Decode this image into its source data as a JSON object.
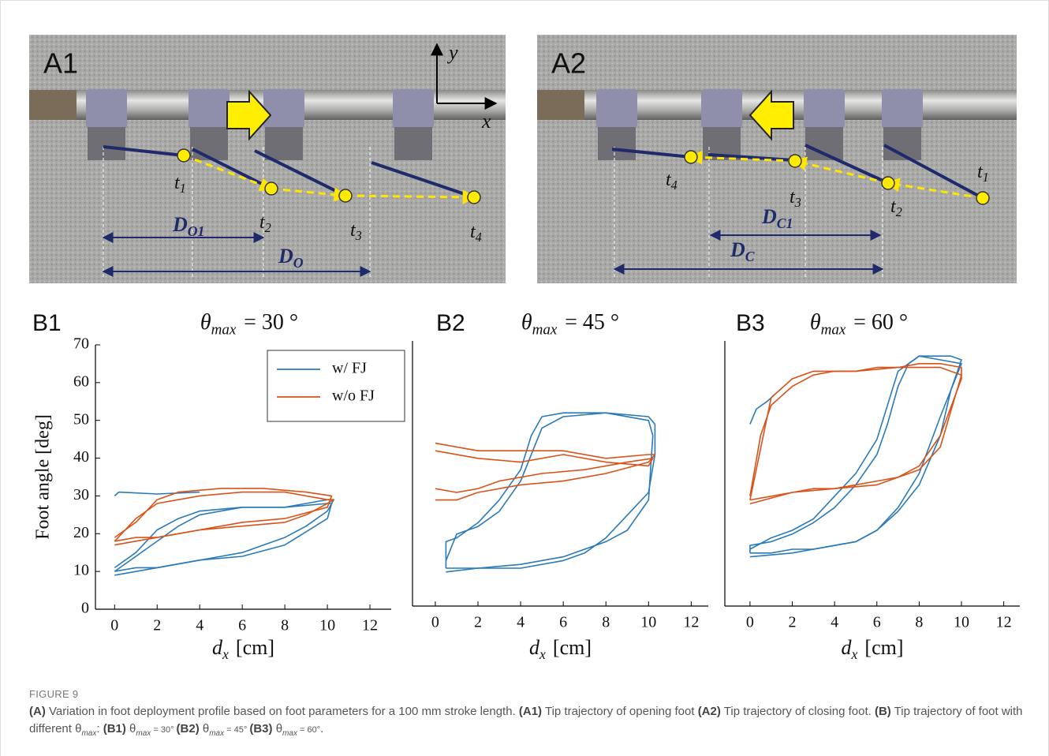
{
  "photos": [
    {
      "label": "A1",
      "axis_labels": [
        "y",
        "x"
      ],
      "tip_labels": [
        {
          "symbol": "t",
          "subscript": "1"
        },
        {
          "symbol": "t",
          "subscript": "2"
        },
        {
          "symbol": "t",
          "subscript": "3"
        },
        {
          "symbol": "t",
          "subscript": "4"
        }
      ],
      "distance_labels": [
        {
          "symbol": "D",
          "subscript": "O1"
        },
        {
          "symbol": "D",
          "subscript": "O"
        }
      ]
    },
    {
      "label": "A2",
      "tip_labels": [
        {
          "symbol": "t",
          "subscript": "1"
        },
        {
          "symbol": "t",
          "subscript": "2"
        },
        {
          "symbol": "t",
          "subscript": "3"
        },
        {
          "symbol": "t",
          "subscript": "4"
        }
      ],
      "distance_labels": [
        {
          "symbol": "D",
          "subscript": "C1"
        },
        {
          "symbol": "D",
          "subscript": "C"
        }
      ]
    }
  ],
  "chart_data": [
    {
      "type": "line",
      "panel": "B1",
      "title": {
        "symbol": "θ",
        "subscript": "max",
        "rest": "= 30 °"
      },
      "x_label": {
        "symbol": "d",
        "subscript": "x",
        "unit": "[cm]"
      },
      "y_label": "Foot angle [deg]",
      "xlim": [
        -0.9,
        13
      ],
      "xticks": [
        0,
        2,
        4,
        6,
        8,
        10,
        12
      ],
      "ylim": [
        0,
        70
      ],
      "yticks": [
        0,
        10,
        20,
        30,
        40,
        50,
        60,
        70
      ],
      "legend": "upper right",
      "series": [
        {
          "name": "w/ FJ",
          "color": "#2a7ab9",
          "x": [
            0,
            1,
            2,
            3,
            4,
            5,
            6,
            7,
            8,
            9,
            10,
            10.3,
            10,
            9,
            8,
            7,
            6,
            5,
            4,
            3,
            2,
            1,
            0
          ],
          "values": [
            10,
            11,
            11,
            12,
            13,
            14,
            15,
            17,
            19,
            22,
            26,
            29,
            29,
            28,
            27,
            27,
            27,
            26,
            25,
            22,
            18,
            14,
            10
          ]
        },
        {
          "color": "#2a7ab9",
          "x": [
            0,
            2,
            4,
            6,
            8,
            10,
            10.2,
            10,
            8,
            6,
            4,
            3,
            2,
            1,
            0
          ],
          "values": [
            9,
            11,
            13,
            14,
            17,
            24,
            28,
            28,
            27,
            27,
            26,
            24,
            21,
            15,
            11
          ]
        },
        {
          "color": "#2a7ab9",
          "x": [
            0,
            0.2,
            2,
            4
          ],
          "values": [
            30,
            31,
            30.5,
            31
          ]
        },
        {
          "name": "w/o FJ",
          "color": "#d95319",
          "x": [
            0,
            1,
            2,
            3,
            4,
            6,
            8,
            9,
            10,
            10.3,
            10,
            8,
            6,
            4,
            3,
            2,
            1,
            0
          ],
          "values": [
            18,
            19,
            19,
            20,
            21,
            22,
            23,
            25,
            28,
            29,
            29,
            31,
            31,
            30,
            29,
            28,
            24,
            18
          ]
        },
        {
          "color": "#d95319",
          "x": [
            0,
            2,
            4,
            6,
            8,
            10,
            10.2,
            9,
            7,
            5,
            3,
            2,
            1,
            0
          ],
          "values": [
            17,
            19,
            21,
            23,
            24,
            27,
            30,
            31,
            32,
            32,
            31,
            29,
            23,
            19
          ]
        }
      ]
    },
    {
      "type": "line",
      "panel": "B2",
      "title": {
        "symbol": "θ",
        "subscript": "max",
        "rest": "= 45 °"
      },
      "x_label": {
        "symbol": "d",
        "subscript": "x",
        "unit": "[cm]"
      },
      "xlim": [
        -1.07,
        12.8
      ],
      "xticks": [
        0,
        2,
        4,
        6,
        8,
        10,
        12
      ],
      "ylim": [
        0,
        70
      ],
      "series": [
        {
          "color": "#2a7ab9",
          "x": [
            0.5,
            2,
            4,
            6,
            7,
            8,
            9,
            10,
            10.3,
            10.3,
            10,
            8,
            6,
            5,
            4.5,
            4,
            3,
            2,
            1,
            0.5,
            0.5
          ],
          "values": [
            10,
            10,
            10,
            12,
            14,
            18,
            24,
            30,
            40,
            48,
            50,
            51,
            51,
            50,
            45,
            36,
            28,
            22,
            18,
            17,
            10
          ]
        },
        {
          "color": "#2a7ab9",
          "x": [
            0.5,
            2,
            4,
            6,
            8,
            9,
            10,
            10.2,
            10,
            8,
            6,
            5,
            4,
            3,
            2,
            1,
            0.5
          ],
          "values": [
            9,
            10,
            11,
            13,
            17,
            20,
            28,
            45,
            49,
            51,
            50,
            47,
            33,
            25,
            21,
            19,
            12
          ]
        },
        {
          "color": "#d95319",
          "x": [
            0,
            1,
            2,
            4,
            6,
            8,
            10,
            10.3,
            10,
            8,
            6,
            4,
            2,
            1,
            0
          ],
          "values": [
            43,
            42,
            41,
            41,
            41,
            39,
            40,
            40,
            38,
            35,
            33,
            32,
            30,
            28,
            28
          ]
        },
        {
          "color": "#d95319",
          "x": [
            0,
            2,
            4,
            6,
            8,
            10,
            10.2,
            9,
            7,
            5,
            4,
            3,
            2,
            1,
            0
          ],
          "values": [
            41,
            39,
            38,
            40,
            38,
            37,
            39,
            38,
            36,
            35,
            34,
            33,
            31,
            30,
            31
          ]
        }
      ]
    },
    {
      "type": "line",
      "panel": "B3",
      "title": {
        "symbol": "θ",
        "subscript": "max",
        "rest": "= 60 °"
      },
      "x_label": {
        "symbol": "d",
        "subscript": "x",
        "unit": "[cm]"
      },
      "xlim": [
        -1.19,
        12.76
      ],
      "xticks": [
        0,
        2,
        4,
        6,
        8,
        10,
        12
      ],
      "ylim": [
        0,
        70
      ],
      "series": [
        {
          "color": "#2a7ab9",
          "x": [
            0,
            1,
            2,
            3,
            4,
            5,
            6,
            7,
            8,
            9,
            9.5,
            10,
            9.5,
            9,
            8,
            7.5,
            7,
            6.5,
            6,
            5,
            4,
            3,
            2,
            1,
            0,
            0
          ],
          "values": [
            14,
            14,
            15,
            15,
            16,
            17,
            20,
            25,
            32,
            45,
            57,
            65,
            66,
            66,
            66,
            64,
            58,
            48,
            40,
            32,
            26,
            22,
            19,
            17,
            16,
            14
          ]
        },
        {
          "color": "#2a7ab9",
          "x": [
            0,
            2,
            4,
            5,
            6,
            7,
            8,
            9,
            10,
            9,
            8,
            7,
            6,
            5,
            4,
            3,
            2,
            1,
            0
          ],
          "values": [
            13,
            14,
            16,
            17,
            20,
            26,
            35,
            50,
            64,
            65,
            66,
            62,
            44,
            35,
            29,
            23,
            20,
            18,
            15
          ]
        },
        {
          "color": "#2a7ab9",
          "x": [
            0,
            0.3,
            0.8,
            1.2
          ],
          "values": [
            48,
            52,
            54,
            56
          ]
        },
        {
          "color": "#d95319",
          "x": [
            0,
            1,
            2,
            3,
            4,
            5,
            6,
            7,
            8,
            9,
            10,
            10,
            9,
            8,
            7,
            6,
            5,
            4,
            3,
            2,
            1,
            0.5,
            0
          ],
          "values": [
            28,
            29,
            30,
            31,
            31,
            32,
            33,
            34,
            37,
            45,
            60,
            63,
            64,
            64,
            63,
            63,
            62,
            62,
            61,
            58,
            53,
            45,
            29
          ]
        },
        {
          "color": "#d95319",
          "x": [
            0,
            2,
            4,
            6,
            8,
            9,
            10,
            9,
            7,
            5,
            3,
            2,
            1,
            0
          ],
          "values": [
            27,
            30,
            31,
            32,
            36,
            42,
            61,
            63,
            63,
            62,
            62,
            60,
            55,
            28
          ]
        }
      ]
    }
  ],
  "caption": {
    "figure_label": "FIGURE 9",
    "runs": [
      {
        "text": "(A)",
        "style": "bold"
      },
      {
        "text": " Variation in foot deployment profile based on foot parameters for a 100 mm stroke length. "
      },
      {
        "text": "(A1)",
        "style": "bold"
      },
      {
        "text": " Tip trajectory of opening foot "
      },
      {
        "text": "(A2)",
        "style": "bold"
      },
      {
        "text": " Tip trajectory of closing foot. "
      },
      {
        "text": "(B)",
        "style": "bold"
      },
      {
        "text": " Tip trajectory of foot with different θ"
      },
      {
        "text": "max",
        "style": "sub"
      },
      {
        "text": ": "
      },
      {
        "text": "(B1)",
        "style": "bold"
      },
      {
        "text": " θ"
      },
      {
        "text": "max",
        "style": "sub"
      },
      {
        "text": " = 30° ",
        "style": "small"
      },
      {
        "text": "(B2)",
        "style": "bold"
      },
      {
        "text": " θ"
      },
      {
        "text": "max",
        "style": "sub"
      },
      {
        "text": " = 45° ",
        "style": "small"
      },
      {
        "text": "(B3)",
        "style": "bold"
      },
      {
        "text": " θ"
      },
      {
        "text": "max",
        "style": "sub"
      },
      {
        "text": " = 60°",
        "style": "small"
      },
      {
        "text": "."
      }
    ]
  }
}
